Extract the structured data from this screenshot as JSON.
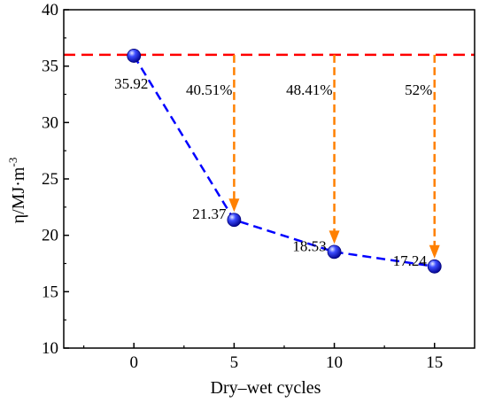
{
  "chart_data": {
    "type": "line",
    "x": [
      0,
      5,
      10,
      15
    ],
    "y": [
      35.92,
      21.37,
      18.53,
      17.24
    ],
    "value_labels": [
      "35.92",
      "21.37",
      "18.53",
      "17.24"
    ],
    "xlabel": "Dry–wet cycles",
    "ylabel_main": "η/MJ·m",
    "ylabel_sup": "-3",
    "xlim": [
      -3.5,
      17
    ],
    "ylim": [
      10,
      40
    ],
    "xticks": [
      "0",
      "5",
      "10",
      "15"
    ],
    "yticks": [
      "10",
      "15",
      "20",
      "25",
      "30",
      "35",
      "40"
    ],
    "reference_line": {
      "y": 36,
      "color": "#ff0000",
      "style": "dashed"
    },
    "reductions": [
      {
        "x": 5,
        "label": "40.51%"
      },
      {
        "x": 10,
        "label": "48.41%"
      },
      {
        "x": 15,
        "label": "52%"
      }
    ],
    "series_color": "#0000ff",
    "arrow_color": "#ff8000",
    "grid": false,
    "legend": "none"
  }
}
